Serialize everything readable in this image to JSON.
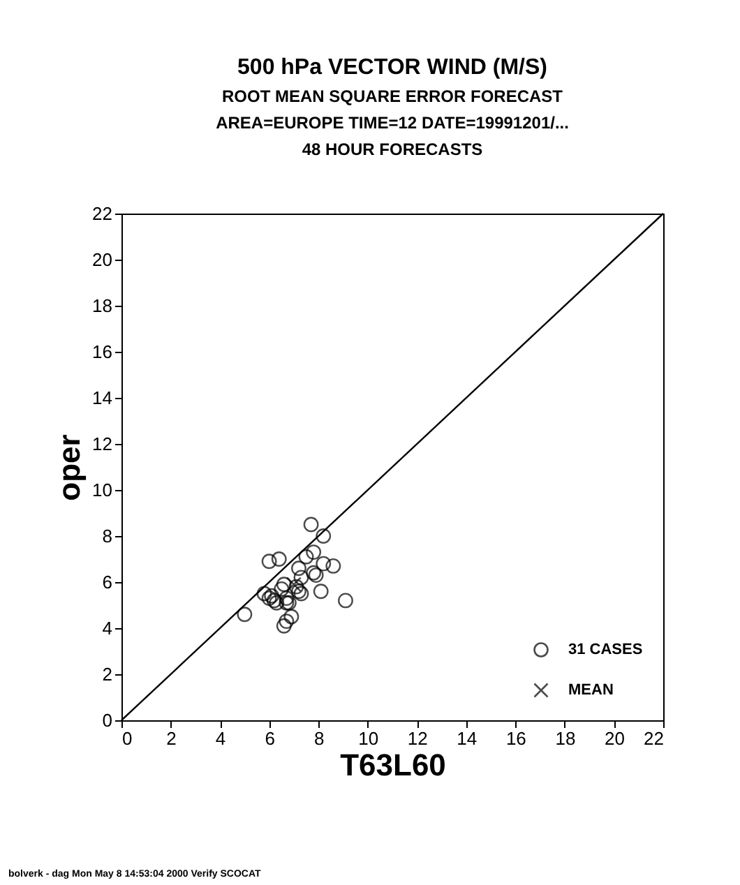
{
  "chart_data": {
    "type": "scatter",
    "title": "500 hPa VECTOR WIND (M/S)",
    "subtitle": "ROOT MEAN SQUARE ERROR                  FORECAST\nAREA=EUROPE    TIME=12    DATE=19991201/...\n48 HOUR FORECASTS",
    "xlabel": "T63L60",
    "ylabel": "oper",
    "xlim": [
      0,
      22
    ],
    "ylim": [
      0,
      22
    ],
    "xticks": [
      0,
      2,
      4,
      6,
      8,
      10,
      12,
      14,
      16,
      18,
      20,
      22
    ],
    "yticks": [
      0,
      2,
      4,
      6,
      8,
      10,
      12,
      14,
      16,
      18,
      20,
      22
    ],
    "grid": false,
    "legend": "bottom right",
    "annotations": [
      "bolverk - dag Mon May  8 14:53:04 2000 Verify SCOCAT"
    ],
    "series": [
      {
        "name": "31 CASES",
        "type": "scatter",
        "marker": "circle",
        "color": "#000000",
        "x": [
          7.7,
          8.2,
          7.8,
          6.0,
          6.4,
          7.5,
          8.6,
          8.2,
          7.2,
          7.8,
          7.9,
          7.3,
          6.6,
          7.1,
          8.1,
          7.3,
          5.8,
          6.1,
          6.3,
          6.7,
          6.8,
          9.1,
          5.0,
          6.9,
          6.7,
          6.6,
          6.0,
          7.2,
          6.2,
          6.7,
          6.5
        ],
        "values": [
          8.5,
          8.0,
          7.3,
          6.9,
          7.0,
          7.1,
          6.7,
          6.8,
          6.6,
          6.4,
          6.3,
          6.2,
          5.9,
          5.8,
          5.6,
          5.5,
          5.5,
          5.4,
          5.1,
          5.3,
          5.1,
          5.2,
          4.6,
          4.5,
          4.3,
          4.1,
          5.3,
          5.6,
          5.2,
          5.1,
          5.7
        ]
      },
      {
        "name": "MEAN",
        "type": "scatter",
        "marker": "cross",
        "color": "#000000",
        "x": [
          7.0
        ],
        "values": [
          5.9
        ]
      },
      {
        "type": "line",
        "color": "#000000",
        "x": [
          0,
          22
        ],
        "values": [
          0,
          22
        ]
      }
    ]
  }
}
